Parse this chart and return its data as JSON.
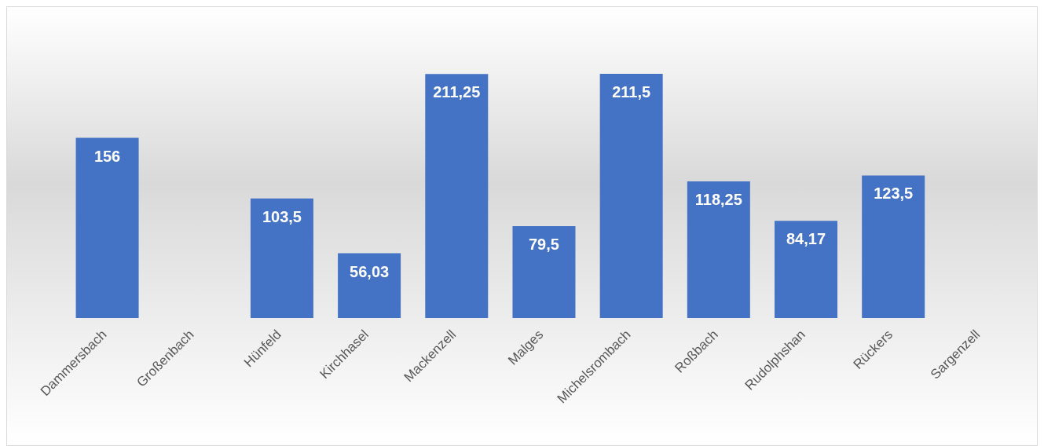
{
  "chart_data": {
    "type": "bar",
    "categories": [
      "Dammersbach",
      "Großenbach",
      "Hünfeld",
      "Kirchhasel",
      "Mackenzell",
      "Malges",
      "Michelsrombach",
      "Roßbach",
      "Rudolphshan",
      "Rückers",
      "Sargenzell"
    ],
    "values": [
      156,
      null,
      103.5,
      56.03,
      211.25,
      79.5,
      211.5,
      118.25,
      84.17,
      123.5,
      null
    ],
    "value_labels": [
      "156",
      null,
      "103,5",
      "56,03",
      "211,25",
      "79,5",
      "211,5",
      "118,25",
      "84,17",
      "123,5",
      null
    ],
    "color": "#4472c4",
    "grid": false,
    "legend": false
  }
}
